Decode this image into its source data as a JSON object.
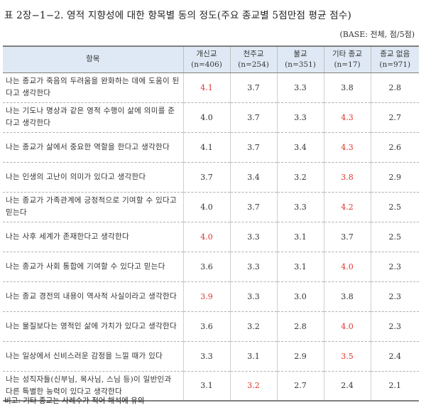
{
  "title": "표 2장−1−2. 영적 지향성에 대한 항목별 동의 정도(주요 종교별 5점만점 평균 점수)",
  "base_note": "(BASE: 전체, 점/5점)",
  "footnote": "비고: 기타 종교는 사례수가 적어 해석에 유의",
  "colors": {
    "header_bg": "#dfe9f5",
    "highlight": "#e0342b",
    "text": "#333333"
  },
  "table": {
    "item_header": "항목",
    "columns": [
      {
        "name": "개신교",
        "n": "(n=406)"
      },
      {
        "name": "천주교",
        "n": "(n=254)"
      },
      {
        "name": "불교",
        "n": "(n=351)"
      },
      {
        "name": "기타 종교",
        "n": "(n=17)"
      },
      {
        "name": "종교 없음",
        "n": "(n=971)"
      }
    ],
    "rows": [
      {
        "item": "나는 종교가 죽음의 두려움을 완화하는 데에 도움이 된다고 생각한다",
        "values": [
          "4.1",
          "3.7",
          "3.3",
          "3.8",
          "2.8"
        ],
        "highlight": [
          true,
          false,
          false,
          false,
          false
        ]
      },
      {
        "item": "나는 기도나 명상과 같은 영적 수행이 삶에 의미를 준다고 생각한다",
        "values": [
          "4.0",
          "3.7",
          "3.3",
          "4.3",
          "2.7"
        ],
        "highlight": [
          false,
          false,
          false,
          true,
          false
        ]
      },
      {
        "item": "나는 종교가 삶에서 중요한 역할을 한다고 생각한다",
        "values": [
          "4.1",
          "3.7",
          "3.4",
          "4.3",
          "2.6"
        ],
        "highlight": [
          false,
          false,
          false,
          true,
          false
        ]
      },
      {
        "item": "나는 인생의 고난이 의미가 있다고 생각한다",
        "values": [
          "3.7",
          "3.4",
          "3.2",
          "3.8",
          "2.9"
        ],
        "highlight": [
          false,
          false,
          false,
          true,
          false
        ]
      },
      {
        "item": "나는 종교가 가족관계에 긍정적으로 기여할 수 있다고 믿는다",
        "values": [
          "4.0",
          "3.7",
          "3.3",
          "4.2",
          "2.5"
        ],
        "highlight": [
          false,
          false,
          false,
          true,
          false
        ]
      },
      {
        "item": "나는 사후 세계가 존재한다고 생각한다",
        "values": [
          "4.0",
          "3.3",
          "3.1",
          "3.7",
          "2.5"
        ],
        "highlight": [
          true,
          false,
          false,
          false,
          false
        ]
      },
      {
        "item": "나는 종교가 사회 통합에 기여할 수 있다고 믿는다",
        "values": [
          "3.6",
          "3.3",
          "3.1",
          "4.0",
          "2.3"
        ],
        "highlight": [
          false,
          false,
          false,
          true,
          false
        ]
      },
      {
        "item": "나는 종교 경전의 내용이 역사적 사실이라고 생각한다",
        "values": [
          "3.9",
          "3.3",
          "3.0",
          "3.8",
          "2.3"
        ],
        "highlight": [
          true,
          false,
          false,
          false,
          false
        ]
      },
      {
        "item": "나는 물질보다는 영적인 삶에 가치가 있다고 생각한다",
        "values": [
          "3.6",
          "3.2",
          "2.8",
          "4.0",
          "2.3"
        ],
        "highlight": [
          false,
          false,
          false,
          true,
          false
        ]
      },
      {
        "item": "나는 일상에서 신비스러운 감정을 느낄 때가 있다",
        "values": [
          "3.3",
          "3.1",
          "2.9",
          "3.5",
          "2.4"
        ],
        "highlight": [
          false,
          false,
          false,
          true,
          false
        ]
      },
      {
        "item": "나는 성직자들(신부님, 목사님, 스님 등)이 일반인과 다른 특별한 능력이 있다고 생각한다",
        "values": [
          "3.1",
          "3.2",
          "2.7",
          "2.4",
          "2.1"
        ],
        "highlight": [
          false,
          true,
          false,
          false,
          false
        ]
      }
    ]
  }
}
